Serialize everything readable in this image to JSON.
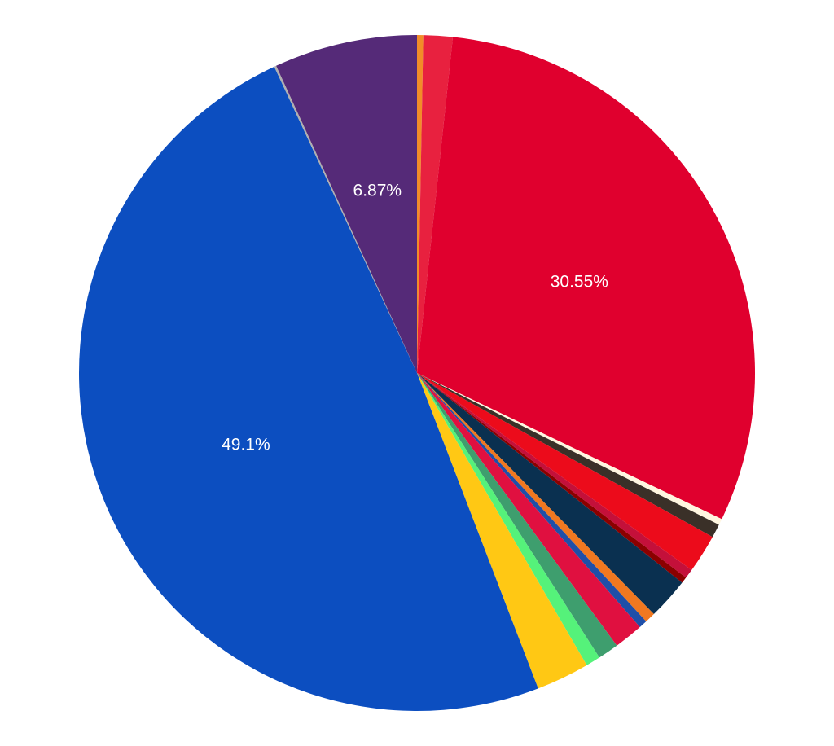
{
  "chart_data": {
    "type": "pie",
    "start_angle_deg": 0,
    "direction": "clockwise",
    "slices": [
      {
        "value": 0.3,
        "color": "#f28c28"
      },
      {
        "value": 1.4,
        "color": "#e8213f"
      },
      {
        "value": 30.55,
        "color": "#e0002e",
        "label": "30.55%"
      },
      {
        "value": 0.3,
        "color": "#fff6e0"
      },
      {
        "value": 0.65,
        "color": "#3a3028"
      },
      {
        "value": 1.85,
        "color": "#ec0b1b"
      },
      {
        "value": 0.45,
        "color": "#c4103a"
      },
      {
        "value": 0.3,
        "color": "#8b0000"
      },
      {
        "value": 2.0,
        "color": "#0a3050"
      },
      {
        "value": 0.5,
        "color": "#f07820"
      },
      {
        "value": 0.4,
        "color": "#1f4fa8"
      },
      {
        "value": 1.4,
        "color": "#e01040"
      },
      {
        "value": 1.0,
        "color": "#3e9e6e"
      },
      {
        "value": 0.7,
        "color": "#55f27a"
      },
      {
        "value": 2.55,
        "color": "#ffc814"
      },
      {
        "value": 49.1,
        "color": "#0c4ec0",
        "label": "49.1%"
      },
      {
        "value": 0.1,
        "color": "#b0b0b0"
      },
      {
        "value": 6.87,
        "color": "#552a78",
        "label": "6.87%"
      }
    ]
  }
}
